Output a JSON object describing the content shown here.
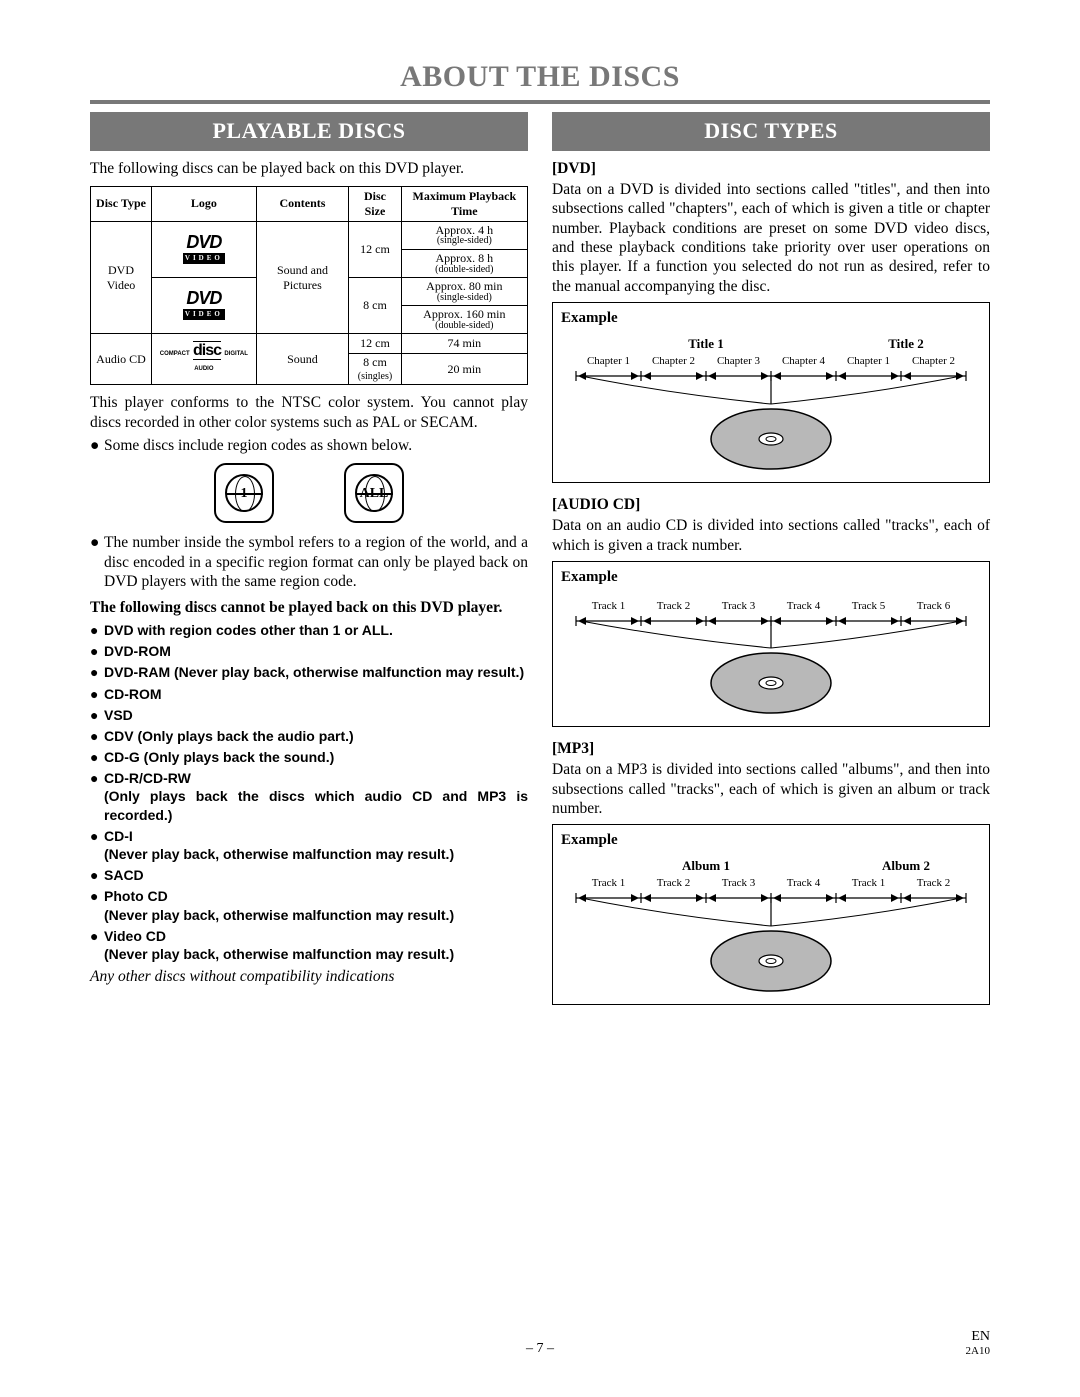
{
  "page_title": "ABOUT THE DISCS",
  "left": {
    "header": "PLAYABLE DISCS",
    "intro": "The following discs can be played back on this DVD player.",
    "table": {
      "headers": [
        "Disc Type",
        "Logo",
        "Contents",
        "Disc Size",
        "Maximum Playback Time"
      ],
      "dvd_type": "DVD Video",
      "dvd_contents": "Sound and Pictures",
      "dvd_sizes": [
        "12 cm",
        "8 cm"
      ],
      "dvd_times": [
        {
          "main": "Approx. 4 h",
          "sub": "(single-sided)"
        },
        {
          "main": "Approx. 8 h",
          "sub": "(double-sided)"
        },
        {
          "main": "Approx. 80 min",
          "sub": "(single-sided)"
        },
        {
          "main": "Approx. 160 min",
          "sub": "(double-sided)"
        }
      ],
      "cd_type": "Audio CD",
      "cd_contents": "Sound",
      "cd_sizes": [
        "12 cm",
        "8 cm (singles)"
      ],
      "cd_times": [
        "74 min",
        "20 min"
      ]
    },
    "ntsc_note": "This player conforms to the NTSC color system. You cannot play discs recorded in other color systems such as PAL or SECAM.",
    "region_bullet": "Some discs include region codes as shown below.",
    "region_labels": [
      "1",
      "ALL"
    ],
    "region_explain": "The number inside the symbol refers to a region of the world, and a disc encoded in a specific region format can only be played back on DVD players with the same region code.",
    "cannot_intro": "The following discs cannot be played back on this DVD player.",
    "cannot_list": [
      "DVD with region codes other than 1 or ALL.",
      "DVD-ROM",
      "DVD-RAM (Never play back, otherwise malfunction may result.)",
      "CD-ROM",
      "VSD",
      "CDV (Only plays back the audio part.)",
      "CD-G (Only plays back the sound.)",
      "CD-R/CD-RW\n(Only plays back the discs which audio CD and MP3 is recorded.)",
      "CD-I\n(Never play back, otherwise malfunction may result.)",
      "SACD",
      "Photo CD\n(Never play back, otherwise malfunction may result.)",
      "Video CD\n(Never play back, otherwise malfunction may result.)"
    ],
    "italic_note": "Any other discs without compatibility indications"
  },
  "right": {
    "header": "DISC TYPES",
    "dvd": {
      "label": "[DVD]",
      "text": "Data on a DVD is divided into sections called \"titles\", and then into subsections called \"chapters\", each of which is given a title or chapter number. Playback conditions are preset on some DVD video discs, and these playback conditions take priority over user operations on this player. If a function you selected do not run as desired, refer to the manual accompanying the disc.",
      "example_label": "Example",
      "titles": [
        "Title 1",
        "Title 2"
      ],
      "chapters": [
        "Chapter 1",
        "Chapter 2",
        "Chapter 3",
        "Chapter 4",
        "Chapter 1",
        "Chapter 2"
      ]
    },
    "cd": {
      "label": "[AUDIO CD]",
      "text": "Data on an audio CD is divided into sections called \"tracks\", each of which is given a track number.",
      "example_label": "Example",
      "tracks": [
        "Track 1",
        "Track 2",
        "Track 3",
        "Track 4",
        "Track 5",
        "Track 6"
      ]
    },
    "mp3": {
      "label": "[MP3]",
      "text": "Data on a MP3 is divided into sections called \"albums\", and then into subsections called \"tracks\", each of which is given an album or track number.",
      "example_label": "Example",
      "albums": [
        "Album 1",
        "Album 2"
      ],
      "tracks": [
        "Track 1",
        "Track 2",
        "Track 3",
        "Track 4",
        "Track 1",
        "Track 2"
      ]
    }
  },
  "footer": {
    "page": "– 7 –",
    "lang": "EN",
    "code": "2A10"
  },
  "colors": {
    "header_gray": "#787878",
    "disc_fill": "#b8b8b8"
  }
}
